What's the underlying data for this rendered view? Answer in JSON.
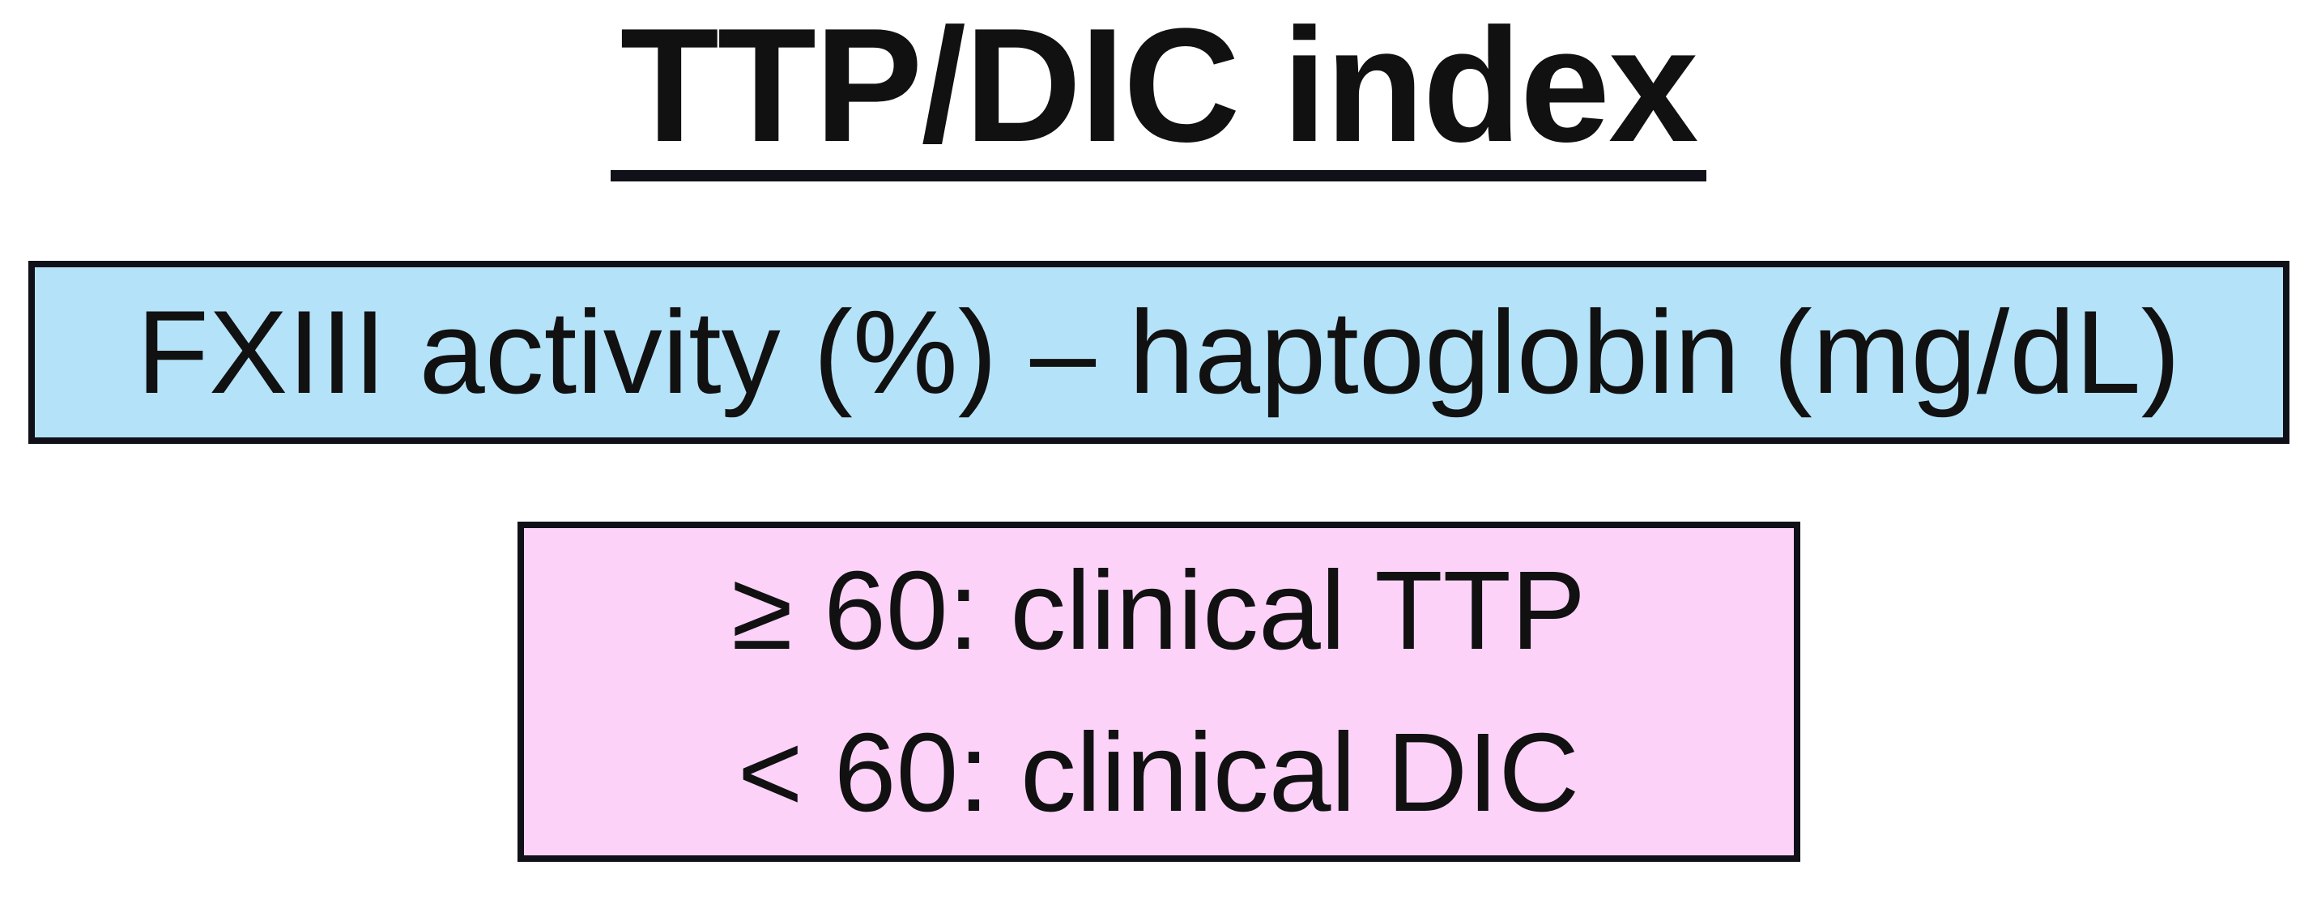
{
  "page": {
    "title": "TTP/DIC index"
  },
  "formula_box": {
    "text": "FXIII activity (%) – haptoglobin (mg/dL)",
    "background": "#b4e2f9",
    "border": "#101018"
  },
  "result_box": {
    "lines": [
      "≥ 60: clinical TTP",
      "< 60: clinical DIC"
    ],
    "background": "#fcd2f9",
    "border": "#101018"
  },
  "colors": {
    "page_background": "#ffffff",
    "text": "#111111"
  }
}
